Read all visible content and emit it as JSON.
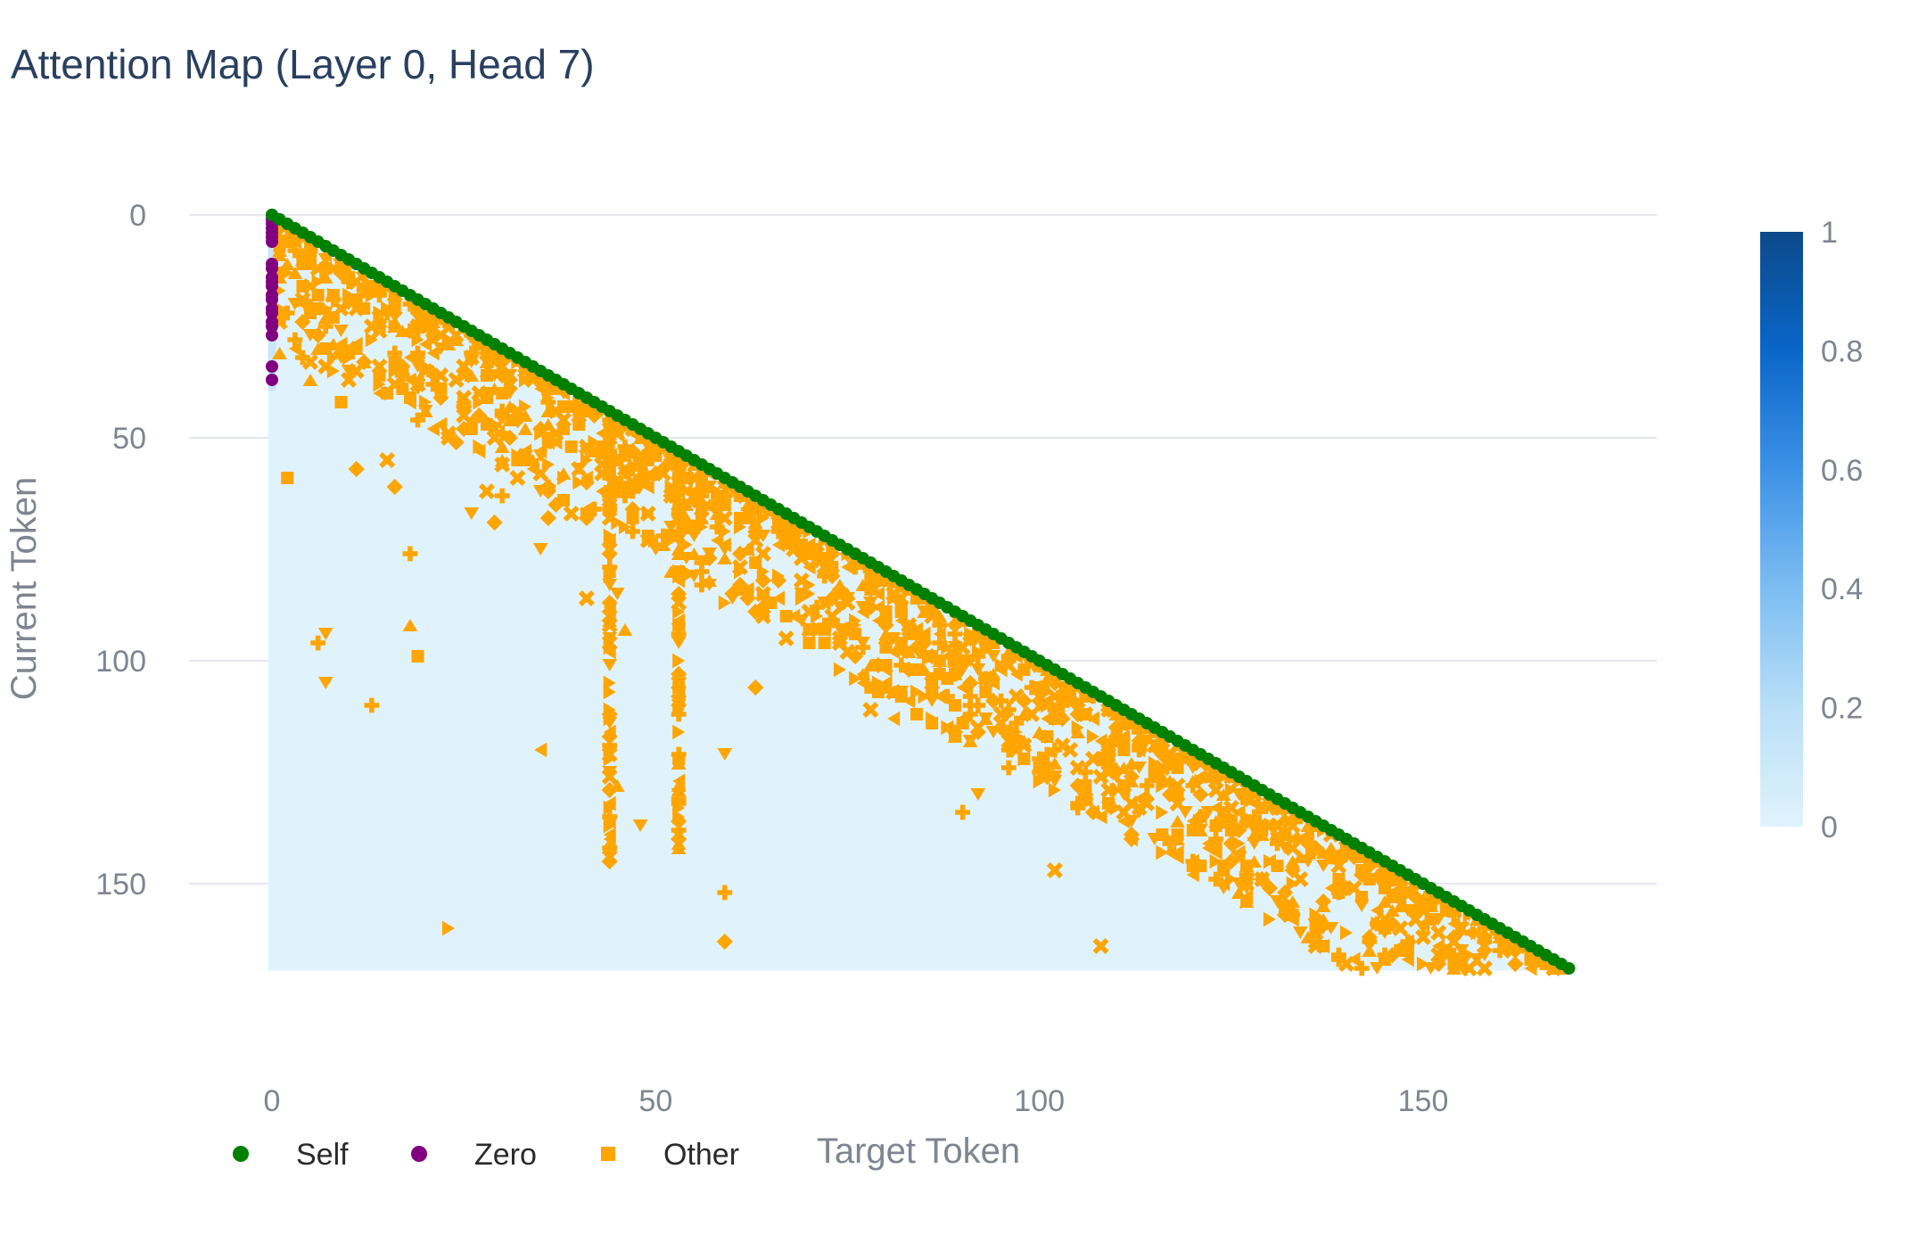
{
  "chart_data": {
    "type": "scatter",
    "title": "Attention Map (Layer 0, Head 7)",
    "xlabel": "Target Token",
    "ylabel": "Current Token",
    "x_ticks": [
      0,
      50,
      100,
      150
    ],
    "y_ticks": [
      0,
      50,
      100,
      150
    ],
    "xlim": [
      -10,
      180
    ],
    "ylim": [
      185,
      -2
    ],
    "y_reversed": true,
    "n_tokens": 170,
    "grid": "horizontal",
    "legend_position": "bottom-left",
    "background_heatmap": {
      "description_visible": "lower-triangular attention heatmap",
      "colorscale": [
        "#e0f3fc",
        "#b9dff7",
        "#7cbdf2",
        "#3d92e6",
        "#0a66c9",
        "#0b4a8a"
      ],
      "value_range": [
        0,
        1
      ],
      "colorbar_ticks": [
        "1",
        "0.8",
        "0.6",
        "0.4",
        "0.2",
        "0"
      ]
    },
    "series": [
      {
        "name": "Self",
        "color": "#008000",
        "marker": "circle",
        "description_visible": "diagonal points where target = current, tokens 0 to 169",
        "points_rule": "x=i, y=i for i in 0..169"
      },
      {
        "name": "Zero",
        "color": "#800080",
        "marker": "circle",
        "points": [
          [
            0,
            0
          ],
          [
            0,
            1
          ],
          [
            0,
            2
          ],
          [
            0,
            3
          ],
          [
            0,
            4
          ],
          [
            0,
            5
          ],
          [
            0,
            6
          ],
          [
            0,
            11
          ],
          [
            0,
            12
          ],
          [
            0,
            14
          ],
          [
            0,
            15
          ],
          [
            0,
            16
          ],
          [
            0,
            18
          ],
          [
            0,
            19
          ],
          [
            0,
            21
          ],
          [
            0,
            22
          ],
          [
            0,
            24
          ],
          [
            0,
            25
          ],
          [
            0,
            27
          ],
          [
            0,
            34
          ],
          [
            0,
            37
          ]
        ]
      },
      {
        "name": "Other",
        "color": "#ffa500",
        "marker": "square",
        "description_visible": "many scattered points below the diagonal, concentrated near it and in vertical streaks around x≈44 and x≈53"
      }
    ]
  },
  "legend": {
    "items": [
      {
        "label": "Self",
        "color": "#008000",
        "marker": "circle"
      },
      {
        "label": "Zero",
        "color": "#800080",
        "marker": "circle"
      },
      {
        "label": "Other",
        "color": "#ffa500",
        "marker": "square"
      }
    ]
  }
}
